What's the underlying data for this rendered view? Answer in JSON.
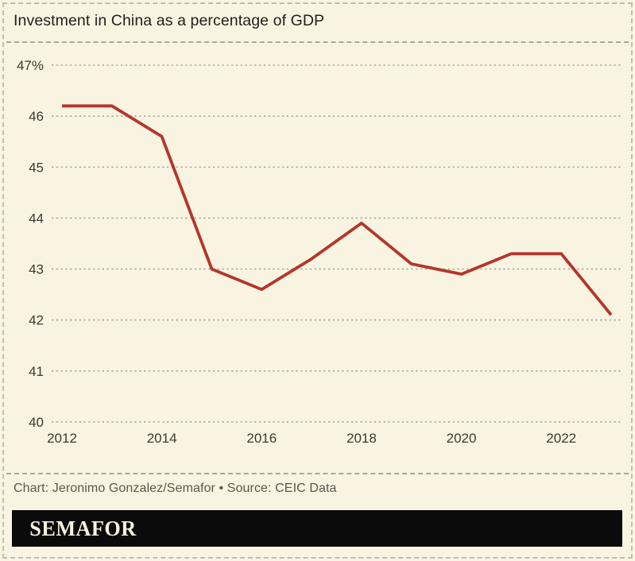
{
  "title": "Investment in China as a percentage of GDP",
  "chart_data": {
    "type": "line",
    "title": "Investment in China as a percentage of GDP",
    "xlabel": "",
    "ylabel": "",
    "x": [
      2012,
      2013,
      2014,
      2015,
      2016,
      2017,
      2018,
      2019,
      2020,
      2021,
      2022,
      2023
    ],
    "values": [
      46.2,
      46.2,
      45.6,
      43.0,
      42.6,
      43.2,
      43.9,
      43.1,
      42.9,
      43.3,
      43.3,
      42.1
    ],
    "ylim": [
      40,
      47
    ],
    "xlim": [
      2012,
      2023
    ],
    "grid": "horizontal-dotted",
    "legend": "none",
    "y_ticks": [
      {
        "value": 47,
        "label": "47%"
      },
      {
        "value": 46,
        "label": "46"
      },
      {
        "value": 45,
        "label": "45"
      },
      {
        "value": 44,
        "label": "44"
      },
      {
        "value": 43,
        "label": "43"
      },
      {
        "value": 42,
        "label": "42"
      },
      {
        "value": 41,
        "label": "41"
      },
      {
        "value": 40,
        "label": "40"
      }
    ],
    "x_ticks": [
      {
        "value": 2012,
        "label": "2012"
      },
      {
        "value": 2014,
        "label": "2014"
      },
      {
        "value": 2016,
        "label": "2016"
      },
      {
        "value": 2018,
        "label": "2018"
      },
      {
        "value": 2020,
        "label": "2020"
      },
      {
        "value": 2022,
        "label": "2022"
      }
    ]
  },
  "footer": {
    "credit": "Chart: Jeronimo Gonzalez/Semafor • Source: CEIC Data"
  },
  "logo": {
    "text": "SEMAFOR"
  },
  "colors": {
    "background": "#f9f4e1",
    "line": "#b4362b",
    "grid": "#a8a899",
    "border_dash": "#bfbfb0",
    "title_text": "#21211b",
    "axis_text": "#3a3a30",
    "credit_text": "#57574c",
    "logo_bar": "#0b0b0b",
    "logo_text": "#f7f2de"
  }
}
